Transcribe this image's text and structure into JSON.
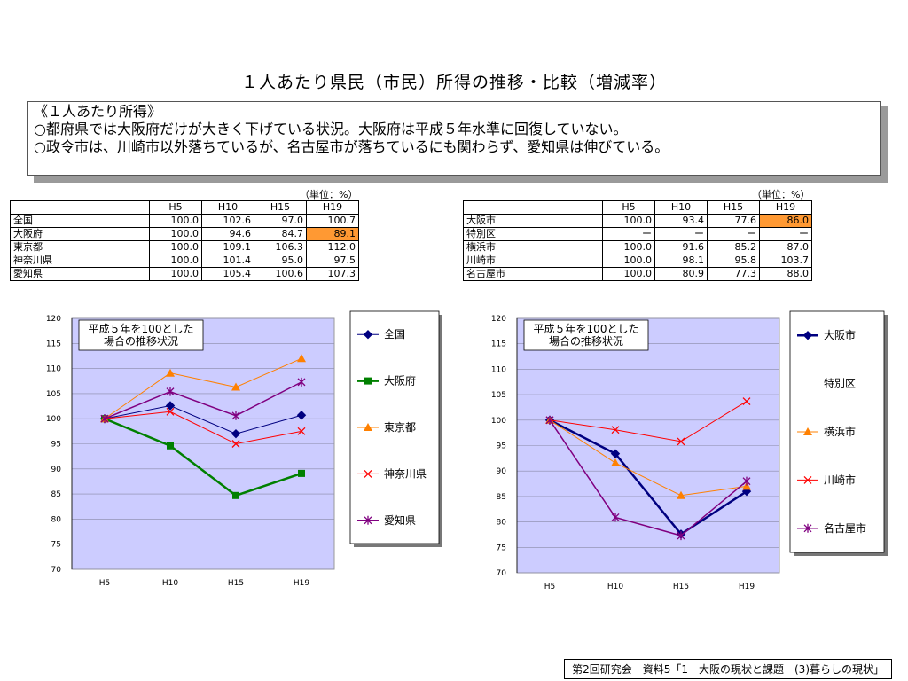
{
  "title": "１人あたり県民（市民）所得の推移・比較（増減率）",
  "note": {
    "lines": [
      "《１人あたり所得》",
      "○都府県では大阪府だけが大きく下げている状況。大阪府は平成５年水準に回復していない。",
      "○政令市は、川崎市以外落ちているが、名古屋市が落ちているにも関わらず、愛知県は伸びている。"
    ]
  },
  "tables": [
    {
      "unit": "（単位：%）",
      "headers": [
        "",
        "H5",
        "H10",
        "H15",
        "H19"
      ],
      "rows": [
        {
          "name": "全国",
          "values": [
            "100.0",
            "102.6",
            "97.0",
            "100.7"
          ]
        },
        {
          "name": "大阪府",
          "values": [
            "100.0",
            "94.6",
            "84.7",
            "89.1"
          ],
          "highlight": 3
        },
        {
          "name": "東京都",
          "values": [
            "100.0",
            "109.1",
            "106.3",
            "112.0"
          ]
        },
        {
          "name": "神奈川県",
          "values": [
            "100.0",
            "101.4",
            "95.0",
            "97.5"
          ]
        },
        {
          "name": "愛知県",
          "values": [
            "100.0",
            "105.4",
            "100.6",
            "107.3"
          ]
        }
      ]
    },
    {
      "unit": "（単位：%）",
      "headers": [
        "",
        "H5",
        "H10",
        "H15",
        "H19"
      ],
      "rows": [
        {
          "name": "大阪市",
          "values": [
            "100.0",
            "93.4",
            "77.6",
            "86.0"
          ],
          "highlight": 3
        },
        {
          "name": "特別区",
          "values": [
            "ー",
            "ー",
            "ー",
            "ー"
          ]
        },
        {
          "name": "横浜市",
          "values": [
            "100.0",
            "91.6",
            "85.2",
            "87.0"
          ]
        },
        {
          "name": "川崎市",
          "values": [
            "100.0",
            "98.1",
            "95.8",
            "103.7"
          ]
        },
        {
          "name": "名古屋市",
          "values": [
            "100.0",
            "80.9",
            "77.3",
            "88.0"
          ]
        }
      ]
    }
  ],
  "highlight_color": "#ff9933",
  "plot_bg": "#ccccff",
  "chart_data": [
    {
      "type": "line",
      "annotation": "平成５年を100とした\n場合の推移状況",
      "categories": [
        "H5",
        "H10",
        "H15",
        "H19"
      ],
      "ylim": [
        70,
        120
      ],
      "ystep": 5,
      "series": [
        {
          "name": "全国",
          "values": [
            100.0,
            102.6,
            97.0,
            100.7
          ],
          "color": "#000080",
          "marker": "diamond",
          "width": 1
        },
        {
          "name": "大阪府",
          "values": [
            100.0,
            94.6,
            84.7,
            89.1
          ],
          "color": "#008000",
          "marker": "square",
          "width": 2.5
        },
        {
          "name": "東京都",
          "values": [
            100.0,
            109.1,
            106.3,
            112.0
          ],
          "color": "#ff8000",
          "marker": "triangle",
          "width": 1
        },
        {
          "name": "神奈川県",
          "values": [
            100.0,
            101.4,
            95.0,
            97.5
          ],
          "color": "#ff0000",
          "marker": "x",
          "width": 1
        },
        {
          "name": "愛知県",
          "values": [
            100.0,
            105.4,
            100.6,
            107.3
          ],
          "color": "#800080",
          "marker": "star",
          "width": 1.5
        }
      ]
    },
    {
      "type": "line",
      "annotation": "平成５年を100とした\n場合の推移状況",
      "categories": [
        "H5",
        "H10",
        "H15",
        "H19"
      ],
      "ylim": [
        70,
        120
      ],
      "ystep": 5,
      "series": [
        {
          "name": "大阪市",
          "values": [
            100.0,
            93.4,
            77.6,
            86.0
          ],
          "color": "#000080",
          "marker": "diamond",
          "width": 2.5
        },
        {
          "name": "特別区",
          "values": [
            null,
            null,
            null,
            null
          ],
          "color": "#000000",
          "marker": "none",
          "width": 0
        },
        {
          "name": "横浜市",
          "values": [
            100.0,
            91.6,
            85.2,
            87.0
          ],
          "color": "#ff8000",
          "marker": "triangle",
          "width": 1
        },
        {
          "name": "川崎市",
          "values": [
            100.0,
            98.1,
            95.8,
            103.7
          ],
          "color": "#ff0000",
          "marker": "x",
          "width": 1
        },
        {
          "name": "名古屋市",
          "values": [
            100.0,
            80.9,
            77.3,
            88.0
          ],
          "color": "#800080",
          "marker": "star",
          "width": 1.5
        }
      ]
    }
  ],
  "footer": "第2回研究会　資料5「1　大阪の現状と課題　(3)暮らしの現状」"
}
